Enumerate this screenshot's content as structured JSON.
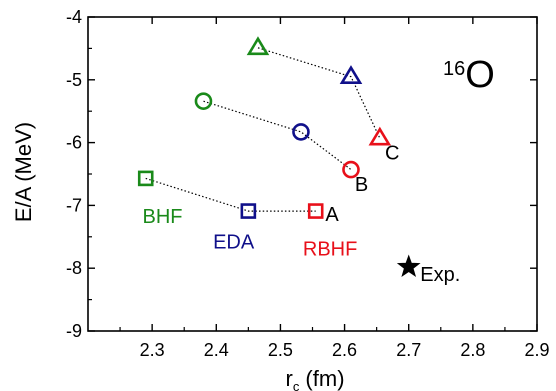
{
  "chart_data": {
    "type": "scatter",
    "title": "",
    "xlabel": "r",
    "xlabel_sub": "c",
    "xlabel_unit": " (fm)",
    "ylabel": "E/A (MeV)",
    "xlim": [
      2.2,
      2.9
    ],
    "ylim": [
      -9,
      -4
    ],
    "xticks": [
      2.3,
      2.4,
      2.5,
      2.6,
      2.7,
      2.8,
      2.9
    ],
    "yticks": [
      -4,
      -5,
      -6,
      -7,
      -8,
      -9
    ],
    "grid": false,
    "nucleus": {
      "mass_number": "16",
      "element": "O"
    },
    "colors": {
      "BHF": "#1a8a1a",
      "EDA": "#10108a",
      "RBHF": "#e8101a",
      "Exp": "#000000"
    },
    "series": [
      {
        "name": "BHF",
        "marker": "mixed",
        "points": [
          {
            "x": 2.29,
            "y": -6.57,
            "marker": "square"
          },
          {
            "x": 2.38,
            "y": -5.34,
            "marker": "circle"
          },
          {
            "x": 2.465,
            "y": -4.49,
            "marker": "triangle"
          }
        ]
      },
      {
        "name": "EDA",
        "marker": "mixed",
        "points": [
          {
            "x": 2.45,
            "y": -7.09,
            "marker": "square"
          },
          {
            "x": 2.532,
            "y": -5.83,
            "marker": "circle"
          },
          {
            "x": 2.61,
            "y": -4.95,
            "marker": "triangle"
          }
        ]
      },
      {
        "name": "RBHF",
        "marker": "mixed",
        "points": [
          {
            "x": 2.555,
            "y": -7.09,
            "marker": "square"
          },
          {
            "x": 2.61,
            "y": -6.43,
            "marker": "circle"
          },
          {
            "x": 2.655,
            "y": -5.93,
            "marker": "triangle"
          }
        ]
      },
      {
        "name": "Exp.",
        "marker": "star",
        "points": [
          {
            "x": 2.7,
            "y": -7.98,
            "marker": "star"
          }
        ]
      }
    ],
    "dotted_lines": [
      {
        "label": "A",
        "x": [
          2.29,
          2.45,
          2.555
        ],
        "y": [
          -6.57,
          -7.09,
          -7.09
        ]
      },
      {
        "label": "B",
        "x": [
          2.38,
          2.532,
          2.61
        ],
        "y": [
          -5.34,
          -5.83,
          -6.43
        ]
      },
      {
        "label": "C",
        "x": [
          2.465,
          2.61,
          2.655
        ],
        "y": [
          -4.49,
          -4.95,
          -5.93
        ]
      }
    ],
    "annotations": [
      {
        "text": "A",
        "x": 2.57,
        "y": -7.25,
        "color": "#000000"
      },
      {
        "text": "B",
        "x": 2.616,
        "y": -6.77,
        "color": "#000000"
      },
      {
        "text": "C",
        "x": 2.663,
        "y": -6.27,
        "color": "#000000"
      },
      {
        "text": "BHF",
        "x": 2.285,
        "y": -7.28,
        "color": "#1a8a1a"
      },
      {
        "text": "EDA",
        "x": 2.395,
        "y": -7.69,
        "color": "#10108a"
      },
      {
        "text": "RBHF",
        "x": 2.535,
        "y": -7.8,
        "color": "#e8101a"
      },
      {
        "text": "Exp.",
        "x": 2.718,
        "y": -8.2,
        "color": "#000000"
      }
    ]
  }
}
